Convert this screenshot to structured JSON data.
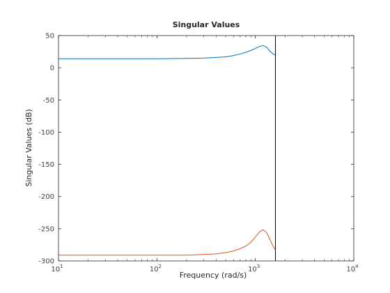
{
  "chart_data": {
    "type": "line",
    "title": "Singular Values",
    "xlabel": "Frequency (rad/s)",
    "ylabel": "Singular Values (dB)",
    "xscale": "log",
    "xlim": [
      10,
      10000
    ],
    "ylim": [
      -300,
      50
    ],
    "grid": false,
    "legend": "none",
    "x_tick_labels": [
      {
        "value": 10,
        "base": "10",
        "exp": "1"
      },
      {
        "value": 100,
        "base": "10",
        "exp": "2"
      },
      {
        "value": 1000,
        "base": "10",
        "exp": "3"
      },
      {
        "value": 10000,
        "base": "10",
        "exp": "4"
      }
    ],
    "y_ticks": [
      50,
      0,
      -50,
      -100,
      -150,
      -200,
      -250,
      -300
    ],
    "vertical_line_x": 1600,
    "series": [
      {
        "color": "#0072BD",
        "x": [
          10,
          50,
          100,
          200,
          300,
          400,
          500,
          600,
          700,
          800,
          900,
          1000,
          1100,
          1200,
          1300,
          1400,
          1500,
          1600
        ],
        "y": [
          14,
          14,
          14,
          14.5,
          15,
          16,
          17,
          19,
          21.5,
          24,
          27,
          30,
          33,
          34.5,
          32,
          26,
          22,
          19.5
        ]
      },
      {
        "color": "#D95319",
        "x": [
          10,
          50,
          100,
          200,
          300,
          400,
          500,
          600,
          700,
          800,
          900,
          1000,
          1100,
          1200,
          1300,
          1400,
          1500,
          1600
        ],
        "y": [
          -291,
          -291,
          -291,
          -291,
          -290,
          -289,
          -287,
          -284.5,
          -281,
          -277,
          -271,
          -263,
          -255,
          -251.5,
          -256,
          -266,
          -276,
          -283
        ]
      }
    ]
  }
}
